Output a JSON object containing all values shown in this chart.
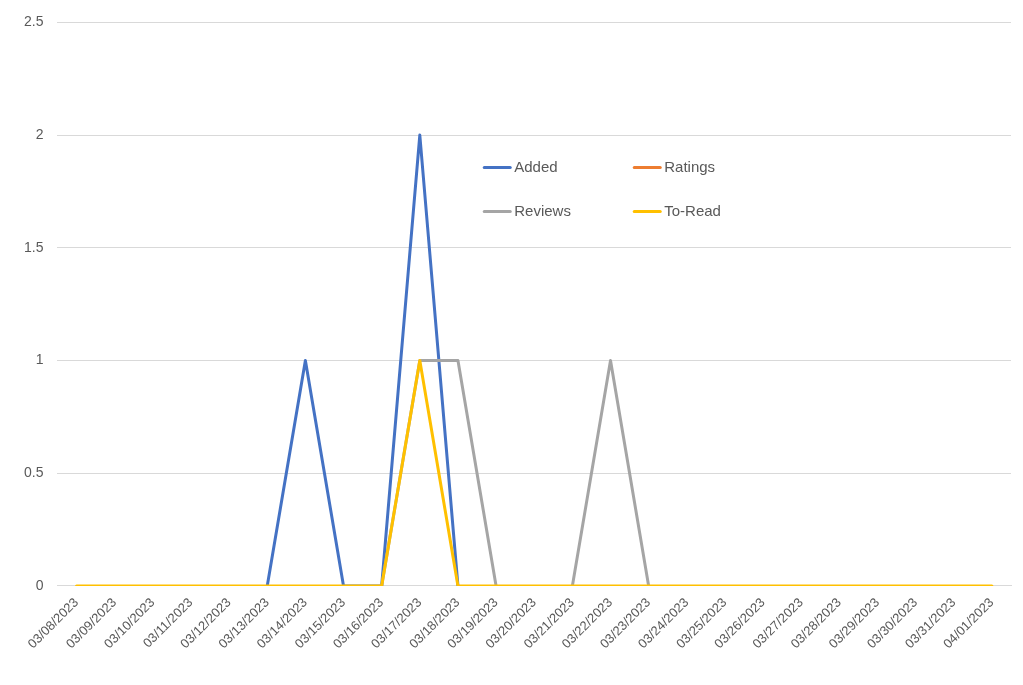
{
  "chart_data": {
    "type": "line",
    "categories": [
      "03/08/2023",
      "03/09/2023",
      "03/10/2023",
      "03/11/2023",
      "03/12/2023",
      "03/13/2023",
      "03/14/2023",
      "03/15/2023",
      "03/16/2023",
      "03/17/2023",
      "03/18/2023",
      "03/19/2023",
      "03/20/2023",
      "03/21/2023",
      "03/22/2023",
      "03/23/2023",
      "03/24/2023",
      "03/25/2023",
      "03/26/2023",
      "03/27/2023",
      "03/28/2023",
      "03/29/2023",
      "03/30/2023",
      "03/31/2023",
      "04/01/2023"
    ],
    "series": [
      {
        "name": "Added",
        "color": "#4472c4",
        "values": [
          null,
          null,
          null,
          null,
          null,
          0,
          1,
          0,
          0,
          2,
          0,
          null,
          null,
          null,
          null,
          null,
          null,
          null,
          null,
          null,
          null,
          null,
          null,
          null,
          null
        ]
      },
      {
        "name": "Ratings",
        "color": "#ed7d31",
        "values": [
          null,
          null,
          null,
          null,
          null,
          null,
          null,
          null,
          null,
          null,
          null,
          null,
          null,
          null,
          null,
          null,
          null,
          null,
          null,
          null,
          null,
          null,
          null,
          null,
          null
        ]
      },
      {
        "name": "Reviews",
        "color": "#a5a5a5",
        "values": [
          null,
          null,
          null,
          null,
          null,
          null,
          null,
          null,
          0,
          1,
          1,
          0,
          null,
          0,
          1,
          0,
          null,
          null,
          null,
          null,
          null,
          null,
          null,
          null,
          null
        ]
      },
      {
        "name": "To-Read",
        "color": "#ffc000",
        "values": [
          0,
          0,
          0,
          0,
          0,
          0,
          0,
          0,
          0,
          1,
          0,
          0,
          0,
          0,
          0,
          0,
          0,
          0,
          0,
          0,
          0,
          0,
          0,
          0,
          0
        ]
      }
    ],
    "ylim": [
      0,
      2.5
    ],
    "yticks": [
      0,
      0.5,
      1,
      1.5,
      2,
      2.5
    ],
    "grid": "y",
    "legend": "top",
    "marker": "none",
    "line_style": "solid"
  }
}
